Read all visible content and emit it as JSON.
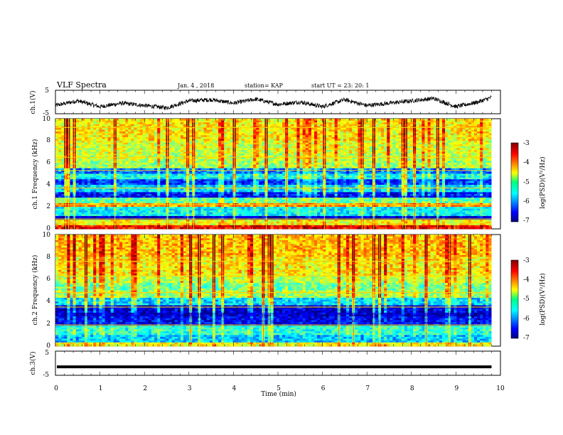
{
  "header": {
    "title": "VLF Spectra",
    "date": "Jan. 4 , 2018",
    "station": "station= KAP",
    "start_ut": "start UT = 23: 20: 1"
  },
  "chart_data": [
    {
      "type": "line",
      "panel": "ch1-waveform",
      "ylabel": "ch.1(V)",
      "ylim": [
        -5,
        5
      ],
      "yticks": [
        "5",
        "-5"
      ],
      "xlim": [
        0,
        10
      ],
      "x_extent": 9.8,
      "note": "noisy waveform oscillating roughly between -3 and 2 V",
      "envelope": [
        [
          0,
          -1.5
        ],
        [
          0.5,
          0.5
        ],
        [
          1,
          -2
        ],
        [
          1.5,
          -0.5
        ],
        [
          2,
          -1.5
        ],
        [
          2.5,
          -2.5
        ],
        [
          3,
          0.5
        ],
        [
          3.5,
          1
        ],
        [
          4,
          -0.5
        ],
        [
          4.5,
          1.2
        ],
        [
          5,
          -1
        ],
        [
          5.5,
          0
        ],
        [
          6,
          -2
        ],
        [
          6.5,
          1
        ],
        [
          7,
          -1.5
        ],
        [
          7.5,
          -0.5
        ],
        [
          8,
          0.5
        ],
        [
          8.5,
          1.5
        ],
        [
          9,
          -2
        ],
        [
          9.5,
          0
        ],
        [
          9.8,
          2
        ]
      ]
    },
    {
      "type": "heatmap",
      "panel": "ch1-spectrogram",
      "ylabel": "ch.1 Frequency (kHz)",
      "ylim": [
        0,
        10
      ],
      "yticks": [
        "0",
        "2",
        "4",
        "6",
        "8",
        "10"
      ],
      "xlim": [
        0,
        10
      ],
      "x_extent": 9.8,
      "colorbar": {
        "label": "log(PSD)(V²/Hz)",
        "range": [
          -7,
          -3
        ],
        "ticks": [
          "-3",
          "-4",
          "-5",
          "-6",
          "-7"
        ]
      },
      "bands": [
        [
          0,
          0.3,
          -3.6
        ],
        [
          0.3,
          0.8,
          -4.6
        ],
        [
          0.8,
          1.2,
          -6.8
        ],
        [
          1.2,
          2.0,
          -5.6
        ],
        [
          2.0,
          2.3,
          -4.2
        ],
        [
          2.3,
          2.8,
          -5.2
        ],
        [
          2.8,
          3.4,
          -6.6
        ],
        [
          3.4,
          4.0,
          -5.8
        ],
        [
          4.0,
          4.5,
          -6.4
        ],
        [
          4.5,
          5.0,
          -5.6
        ],
        [
          5.0,
          5.5,
          -6.2
        ],
        [
          5.5,
          6.2,
          -5.0
        ],
        [
          6.2,
          6.8,
          -4.9
        ],
        [
          6.8,
          8.0,
          -4.8
        ],
        [
          8.0,
          10.0,
          -4.6
        ]
      ],
      "lines_khz": [
        0.9,
        2.2,
        3.7,
        5.3,
        6.5,
        9.2
      ]
    },
    {
      "type": "heatmap",
      "panel": "ch2-spectrogram",
      "ylabel": "ch.2 Frequency (kHz)",
      "ylim": [
        0,
        10
      ],
      "yticks": [
        "0",
        "2",
        "4",
        "6",
        "8",
        "10"
      ],
      "xlim": [
        0,
        10
      ],
      "x_extent": 9.8,
      "colorbar": {
        "label": "log(PSD)(V²/Hz)",
        "range": [
          -7,
          -3
        ],
        "ticks": [
          "-3",
          "-4",
          "-5",
          "-6",
          "-7"
        ]
      },
      "bands": [
        [
          0,
          0.4,
          -4.6
        ],
        [
          0.4,
          1.0,
          -5.8
        ],
        [
          1.0,
          1.9,
          -5.4
        ],
        [
          1.9,
          2.6,
          -6.6
        ],
        [
          2.6,
          3.6,
          -6.8
        ],
        [
          3.6,
          4.4,
          -5.8
        ],
        [
          4.4,
          5.0,
          -5.0
        ],
        [
          5.0,
          5.6,
          -5.2
        ],
        [
          5.6,
          6.3,
          -4.9
        ],
        [
          6.3,
          8.0,
          -4.6
        ],
        [
          8.0,
          10.0,
          -4.4
        ]
      ],
      "lines_khz": [
        1.9,
        3.5,
        4.8,
        6.3,
        7.6
      ]
    },
    {
      "type": "line",
      "panel": "ch3-waveform",
      "ylabel": "ch.3(V)",
      "ylim": [
        -5,
        5
      ],
      "yticks": [
        "5",
        "0",
        "-5"
      ],
      "xlim": [
        0,
        10
      ],
      "x_extent": 9.8,
      "value": -1.5
    }
  ],
  "xaxis": {
    "label": "Time (min)",
    "ticks": [
      "0",
      "1",
      "2",
      "3",
      "4",
      "5",
      "6",
      "7",
      "8",
      "9",
      "10"
    ]
  }
}
